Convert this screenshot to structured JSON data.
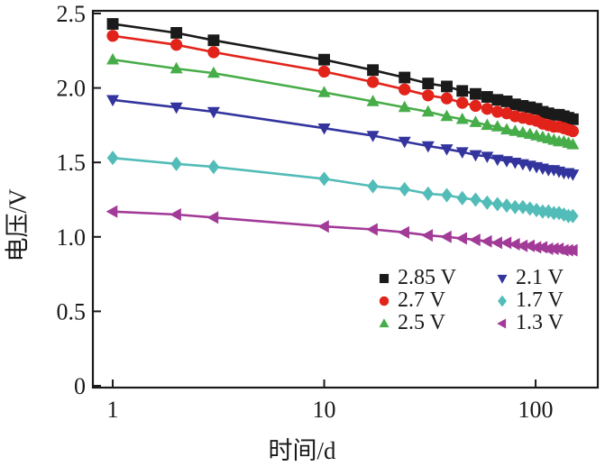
{
  "figure": {
    "x_axis_label": "时间/d",
    "y_axis_label": "电压/V"
  },
  "chart_data": {
    "type": "line",
    "title": "",
    "xlabel": "时间/d",
    "ylabel": "电压/V",
    "x_scale": "log10",
    "grid": false,
    "frame_color": "#1a1a1a",
    "x_ticks": [
      1,
      10,
      100
    ],
    "x_tick_labels": [
      "1",
      "10",
      "100"
    ],
    "y_ticks": [
      0,
      0.5,
      1.0,
      1.5,
      2.0,
      2.5
    ],
    "y_tick_labels": [
      "0",
      "0.5",
      "1.0",
      "1.5",
      "2.0",
      "2.5"
    ],
    "xlim_log10": [
      -0.094,
      2.294
    ],
    "ylim": [
      -0.012,
      2.518
    ],
    "x": [
      1,
      2,
      3,
      10,
      17,
      24,
      31,
      38,
      45,
      52,
      59,
      66,
      73,
      80,
      87,
      94,
      101,
      108,
      115,
      122,
      129,
      136,
      143,
      150
    ],
    "series": [
      {
        "name": "2.85 V",
        "color": "#1a1a1a",
        "marker": "square",
        "values": [
          2.43,
          2.37,
          2.32,
          2.19,
          2.12,
          2.07,
          2.03,
          2.01,
          1.98,
          1.96,
          1.94,
          1.92,
          1.91,
          1.89,
          1.88,
          1.87,
          1.86,
          1.84,
          1.83,
          1.82,
          1.82,
          1.81,
          1.8,
          1.79
        ]
      },
      {
        "name": "2.7 V",
        "color": "#e2231a",
        "marker": "circle",
        "values": [
          2.35,
          2.29,
          2.24,
          2.11,
          2.04,
          1.99,
          1.95,
          1.93,
          1.9,
          1.88,
          1.86,
          1.84,
          1.83,
          1.81,
          1.8,
          1.79,
          1.78,
          1.76,
          1.75,
          1.74,
          1.74,
          1.73,
          1.72,
          1.71
        ]
      },
      {
        "name": "2.5 V",
        "color": "#47ad49",
        "marker": "triangle-up",
        "values": [
          2.19,
          2.13,
          2.1,
          1.97,
          1.91,
          1.87,
          1.84,
          1.81,
          1.79,
          1.77,
          1.75,
          1.74,
          1.72,
          1.71,
          1.7,
          1.69,
          1.68,
          1.67,
          1.66,
          1.65,
          1.64,
          1.64,
          1.63,
          1.62
        ]
      },
      {
        "name": "2.1 V",
        "color": "#33349e",
        "marker": "triangle-down",
        "values": [
          1.92,
          1.87,
          1.84,
          1.73,
          1.68,
          1.64,
          1.61,
          1.59,
          1.57,
          1.55,
          1.54,
          1.52,
          1.51,
          1.5,
          1.49,
          1.48,
          1.47,
          1.46,
          1.45,
          1.45,
          1.44,
          1.43,
          1.43,
          1.42
        ]
      },
      {
        "name": "1.7 V",
        "color": "#52bcb8",
        "marker": "diamond",
        "values": [
          1.53,
          1.49,
          1.47,
          1.39,
          1.34,
          1.32,
          1.29,
          1.28,
          1.26,
          1.25,
          1.23,
          1.22,
          1.21,
          1.2,
          1.2,
          1.19,
          1.18,
          1.17,
          1.17,
          1.16,
          1.16,
          1.15,
          1.14,
          1.14
        ]
      },
      {
        "name": "1.3 V",
        "color": "#a23a98",
        "marker": "triangle-left",
        "values": [
          1.17,
          1.15,
          1.13,
          1.07,
          1.05,
          1.03,
          1.01,
          1.0,
          0.99,
          0.98,
          0.97,
          0.96,
          0.96,
          0.95,
          0.94,
          0.94,
          0.93,
          0.93,
          0.92,
          0.92,
          0.92,
          0.91,
          0.91,
          0.91
        ]
      }
    ],
    "legend": {
      "position": "inside-bottom-right",
      "entries": [
        "2.85 V",
        "2.7 V",
        "2.5 V",
        "2.1 V",
        "1.7 V",
        "1.3 V"
      ]
    }
  }
}
